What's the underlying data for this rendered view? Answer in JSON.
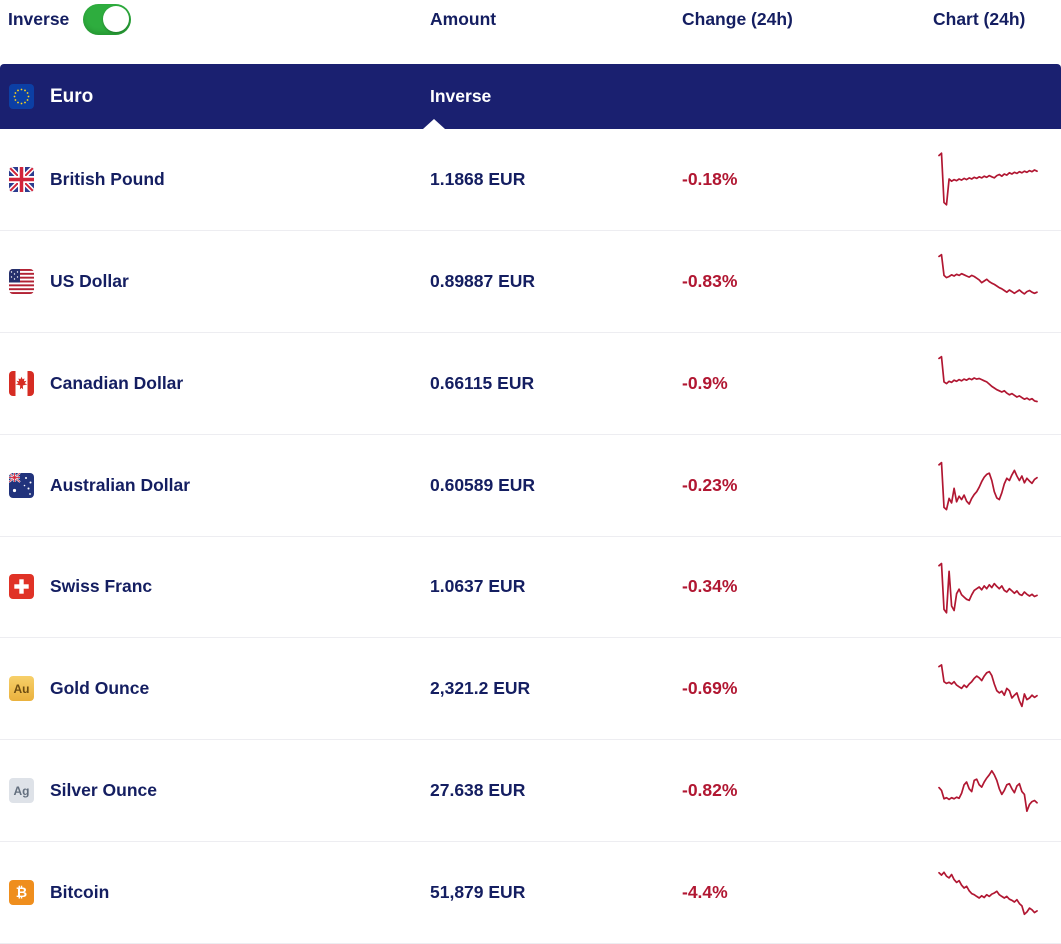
{
  "header": {
    "inverse_label": "Inverse",
    "toggle_on": true,
    "columns": {
      "amount": "Amount",
      "change": "Change (24h)",
      "chart": "Chart (24h)"
    }
  },
  "base_currency": {
    "name": "Euro",
    "mode_label": "Inverse",
    "icon": "eu-flag"
  },
  "rows": [
    {
      "name": "British Pound",
      "icon": "uk-flag",
      "amount": "1.1868 EUR",
      "change": "-0.18%"
    },
    {
      "name": "US Dollar",
      "icon": "us-flag",
      "amount": "0.89887 EUR",
      "change": "-0.83%"
    },
    {
      "name": "Canadian Dollar",
      "icon": "canada-flag",
      "amount": "0.66115 EUR",
      "change": "-0.9%"
    },
    {
      "name": "Australian Dollar",
      "icon": "australia-flag",
      "amount": "0.60589 EUR",
      "change": "-0.23%"
    },
    {
      "name": "Swiss Franc",
      "icon": "switzerland-flag",
      "amount": "1.0637 EUR",
      "change": "-0.34%"
    },
    {
      "name": "Gold Ounce",
      "icon": "gold-badge",
      "icon_text": "Au",
      "amount": "2,321.2 EUR",
      "change": "-0.69%"
    },
    {
      "name": "Silver Ounce",
      "icon": "silver-badge",
      "icon_text": "Ag",
      "amount": "27.638 EUR",
      "change": "-0.82%"
    },
    {
      "name": "Bitcoin",
      "icon": "bitcoin-badge",
      "icon_text": "₿",
      "amount": "51,879 EUR",
      "change": "-4.4%"
    }
  ],
  "colors": {
    "banner_navy": "#1a2070",
    "text_navy": "#141E61",
    "negative_red": "#b11732",
    "toggle_green": "#2ead3e",
    "gold_badge": "#eab13d",
    "silver_badge": "#dee2e8",
    "bitcoin_orange": "#ef8e1d",
    "row_border": "#ededf1"
  },
  "chart_data": {
    "type": "line",
    "description": "24h red sparklines per row; values normalized 0-100 (min-max within each sparkline), no axes or gridlines shown",
    "sparklines": [
      {
        "name": "British Pound",
        "values": [
          92,
          96,
          8,
          4,
          50,
          46,
          49,
          47,
          50,
          48,
          51,
          49,
          52,
          50,
          53,
          51,
          54,
          52,
          55,
          53,
          56,
          54,
          52,
          56,
          58,
          55,
          59,
          57,
          61,
          59,
          62,
          60,
          63,
          61,
          64,
          62,
          65,
          63,
          66,
          64
        ]
      },
      {
        "name": "US Dollar",
        "values": [
          94,
          97,
          60,
          56,
          58,
          61,
          59,
          62,
          60,
          63,
          61,
          59,
          57,
          60,
          58,
          55,
          52,
          47,
          50,
          53,
          49,
          46,
          44,
          41,
          38,
          36,
          33,
          30,
          34,
          31,
          28,
          31,
          34,
          30,
          27,
          31,
          33,
          30,
          28,
          30
        ]
      },
      {
        "name": "Canadian Dollar",
        "values": [
          94,
          97,
          52,
          49,
          53,
          51,
          55,
          53,
          56,
          54,
          57,
          55,
          58,
          56,
          59,
          57,
          58,
          56,
          54,
          52,
          48,
          44,
          41,
          38,
          36,
          34,
          36,
          32,
          29,
          31,
          28,
          25,
          27,
          24,
          21,
          23,
          20,
          22,
          18,
          17
        ]
      },
      {
        "name": "Australian Dollar",
        "values": [
          86,
          90,
          10,
          6,
          26,
          18,
          44,
          20,
          30,
          24,
          32,
          21,
          16,
          26,
          33,
          38,
          46,
          56,
          64,
          69,
          71,
          58,
          38,
          27,
          24,
          36,
          52,
          62,
          58,
          68,
          76,
          66,
          58,
          66,
          54,
          62,
          57,
          53,
          60,
          63
        ]
      },
      {
        "name": "Swiss Franc",
        "values": [
          88,
          92,
          10,
          4,
          78,
          16,
          8,
          38,
          46,
          36,
          32,
          28,
          26,
          36,
          44,
          47,
          50,
          45,
          52,
          47,
          54,
          49,
          56,
          51,
          47,
          52,
          44,
          41,
          47,
          43,
          39,
          43,
          37,
          35,
          41,
          37,
          34,
          37,
          33,
          35
        ]
      },
      {
        "name": "Gold Ounce",
        "values": [
          90,
          93,
          63,
          60,
          62,
          59,
          63,
          57,
          54,
          51,
          57,
          53,
          59,
          63,
          69,
          73,
          70,
          65,
          73,
          79,
          81,
          74,
          59,
          47,
          43,
          46,
          39,
          51,
          47,
          34,
          39,
          43,
          29,
          19,
          41,
          31,
          34,
          39,
          35,
          38
        ]
      },
      {
        "name": "Silver Ounce",
        "values": [
          56,
          51,
          36,
          38,
          35,
          38,
          36,
          39,
          37,
          46,
          61,
          66,
          54,
          49,
          69,
          71,
          61,
          57,
          66,
          73,
          79,
          86,
          79,
          69,
          54,
          44,
          51,
          61,
          63,
          54,
          47,
          59,
          63,
          49,
          44,
          14,
          26,
          31,
          33,
          29
        ]
      },
      {
        "name": "Bitcoin",
        "values": [
          86,
          82,
          87,
          80,
          77,
          83,
          74,
          69,
          72,
          64,
          59,
          62,
          54,
          49,
          47,
          44,
          41,
          45,
          42,
          47,
          44,
          48,
          50,
          53,
          47,
          44,
          41,
          44,
          39,
          37,
          34,
          38,
          31,
          27,
          12,
          16,
          23,
          20,
          15,
          18
        ]
      }
    ]
  }
}
